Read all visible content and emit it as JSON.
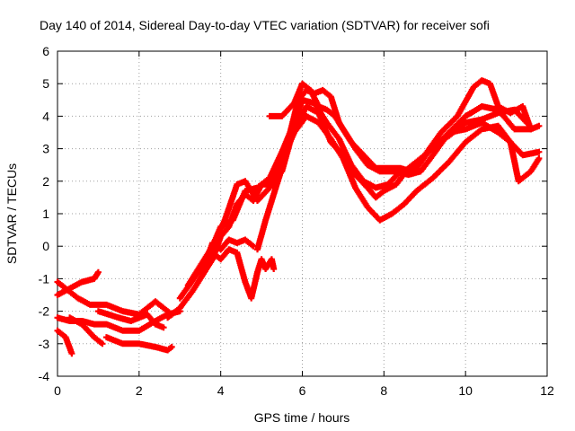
{
  "chart_data": {
    "type": "scatter",
    "title": "Day 140 of 2014, Sidereal Day-to-day VTEC variation (SDTVAR) for receiver sofi",
    "xlabel": "GPS time / hours",
    "ylabel": "SDTVAR / TECUs",
    "xlim": [
      0,
      12
    ],
    "ylim": [
      -4,
      6
    ],
    "xticks": [
      0,
      2,
      4,
      6,
      8,
      10,
      12
    ],
    "yticks": [
      -4,
      -3,
      -2,
      -1,
      0,
      1,
      2,
      3,
      4,
      5,
      6
    ],
    "xtick_labels": [
      "0",
      "2",
      "4",
      "6",
      "8",
      "10",
      "12"
    ],
    "ytick_labels": [
      "-4",
      "-3",
      "-2",
      "-1",
      "0",
      "1",
      "2",
      "3",
      "4",
      "5",
      "6"
    ],
    "grid": true,
    "marker": "+",
    "series_color": "#ff0000",
    "series": [
      {
        "name": "s1",
        "points": [
          [
            0,
            -1.1
          ],
          [
            0.3,
            -1.4
          ],
          [
            0.5,
            -1.6
          ],
          [
            0.8,
            -1.8
          ],
          [
            1.2,
            -1.8
          ],
          [
            1.6,
            -2.0
          ],
          [
            2.0,
            -2.1
          ],
          [
            2.2,
            -1.9
          ],
          [
            2.4,
            -1.7
          ],
          [
            2.6,
            -1.9
          ],
          [
            2.8,
            -2.1
          ]
        ]
      },
      {
        "name": "s2",
        "points": [
          [
            0,
            -1.5
          ],
          [
            0.3,
            -1.3
          ],
          [
            0.6,
            -1.1
          ],
          [
            0.9,
            -1.0
          ],
          [
            1.0,
            -0.8
          ]
        ]
      },
      {
        "name": "s3",
        "points": [
          [
            0,
            -2.2
          ],
          [
            0.3,
            -2.3
          ],
          [
            0.6,
            -2.3
          ],
          [
            0.9,
            -2.4
          ],
          [
            1.2,
            -2.4
          ],
          [
            1.6,
            -2.6
          ],
          [
            2.0,
            -2.6
          ],
          [
            2.4,
            -2.3
          ],
          [
            2.7,
            -2.1
          ],
          [
            3.0,
            -2.0
          ]
        ]
      },
      {
        "name": "s4",
        "points": [
          [
            0,
            -2.6
          ],
          [
            0.2,
            -2.8
          ],
          [
            0.35,
            -3.3
          ]
        ]
      },
      {
        "name": "s5",
        "points": [
          [
            0.3,
            -2.2
          ],
          [
            0.6,
            -2.4
          ],
          [
            0.9,
            -2.8
          ],
          [
            1.1,
            -3.0
          ]
        ]
      },
      {
        "name": "s6",
        "points": [
          [
            1.0,
            -2.0
          ],
          [
            1.5,
            -2.2
          ],
          [
            1.8,
            -2.3
          ],
          [
            2.0,
            -2.2
          ],
          [
            2.2,
            -2.1
          ],
          [
            2.4,
            -2.4
          ],
          [
            2.6,
            -2.5
          ]
        ]
      },
      {
        "name": "s7",
        "points": [
          [
            1.2,
            -2.8
          ],
          [
            1.6,
            -3.0
          ],
          [
            2.0,
            -3.0
          ],
          [
            2.4,
            -3.1
          ],
          [
            2.7,
            -3.2
          ],
          [
            2.8,
            -3.1
          ]
        ]
      },
      {
        "name": "s8",
        "points": [
          [
            2.7,
            -2.2
          ],
          [
            3.0,
            -1.9
          ],
          [
            3.3,
            -1.4
          ],
          [
            3.6,
            -0.8
          ],
          [
            3.8,
            -0.4
          ],
          [
            4.0,
            0.3
          ],
          [
            4.2,
            0.6
          ],
          [
            4.4,
            1.3
          ],
          [
            4.6,
            1.6
          ],
          [
            4.8,
            1.4
          ],
          [
            5.0,
            1.9
          ],
          [
            5.2,
            1.9
          ],
          [
            5.5,
            2.3
          ],
          [
            5.7,
            3.2
          ],
          [
            5.9,
            3.8
          ],
          [
            6.1,
            4.3
          ],
          [
            6.4,
            4.1
          ],
          [
            6.7,
            3.2
          ],
          [
            7.0,
            2.8
          ],
          [
            7.3,
            2.2
          ],
          [
            7.6,
            1.8
          ],
          [
            7.8,
            1.5
          ],
          [
            8.0,
            1.7
          ],
          [
            8.3,
            1.9
          ],
          [
            8.6,
            2.4
          ],
          [
            8.9,
            2.7
          ],
          [
            9.2,
            3.0
          ],
          [
            9.6,
            3.5
          ],
          [
            10.0,
            3.6
          ],
          [
            10.4,
            3.8
          ],
          [
            10.8,
            3.5
          ],
          [
            11.1,
            3.2
          ],
          [
            11.4,
            2.8
          ],
          [
            11.8,
            2.9
          ]
        ]
      },
      {
        "name": "s9",
        "points": [
          [
            3.0,
            -1.6
          ],
          [
            3.4,
            -0.9
          ],
          [
            3.7,
            -0.3
          ],
          [
            4.0,
            0.6
          ],
          [
            4.3,
            0.8
          ],
          [
            4.6,
            1.7
          ],
          [
            4.9,
            1.8
          ],
          [
            5.2,
            2.1
          ],
          [
            5.5,
            2.9
          ],
          [
            5.8,
            3.8
          ],
          [
            6.0,
            4.5
          ],
          [
            6.3,
            4.4
          ],
          [
            6.6,
            3.8
          ],
          [
            6.9,
            3.3
          ],
          [
            7.2,
            2.5
          ],
          [
            7.5,
            2.0
          ],
          [
            7.8,
            1.8
          ],
          [
            8.1,
            1.9
          ],
          [
            8.4,
            2.3
          ],
          [
            8.8,
            2.4
          ],
          [
            9.2,
            3.1
          ],
          [
            9.6,
            3.4
          ],
          [
            10.0,
            3.8
          ],
          [
            10.4,
            3.9
          ],
          [
            10.8,
            4.1
          ],
          [
            11.2,
            4.2
          ],
          [
            11.5,
            3.8
          ]
        ]
      },
      {
        "name": "s10",
        "points": [
          [
            3.2,
            -1.2
          ],
          [
            3.5,
            -0.6
          ],
          [
            3.8,
            0.0
          ],
          [
            4.1,
            0.8
          ],
          [
            4.4,
            1.9
          ],
          [
            4.6,
            2.0
          ],
          [
            4.9,
            1.4
          ],
          [
            5.2,
            1.8
          ],
          [
            5.5,
            2.7
          ],
          [
            5.8,
            3.5
          ],
          [
            6.1,
            4.0
          ],
          [
            6.4,
            3.8
          ],
          [
            6.7,
            3.3
          ],
          [
            7.0,
            2.7
          ],
          [
            7.3,
            1.8
          ],
          [
            7.6,
            1.2
          ],
          [
            7.9,
            0.8
          ],
          [
            8.2,
            1.0
          ],
          [
            8.5,
            1.3
          ],
          [
            8.8,
            1.7
          ],
          [
            9.2,
            2.1
          ],
          [
            9.6,
            2.6
          ],
          [
            10.0,
            3.2
          ],
          [
            10.4,
            3.6
          ],
          [
            10.8,
            3.7
          ],
          [
            11.1,
            3.2
          ],
          [
            11.3,
            2.0
          ],
          [
            11.6,
            2.3
          ],
          [
            11.8,
            2.7
          ]
        ]
      },
      {
        "name": "s11",
        "points": [
          [
            3.8,
            -0.2
          ],
          [
            4.0,
            -0.4
          ],
          [
            4.2,
            -0.1
          ],
          [
            4.4,
            -0.2
          ],
          [
            4.6,
            -1.1
          ],
          [
            4.75,
            -1.6
          ],
          [
            4.9,
            -0.8
          ],
          [
            5.0,
            -0.4
          ],
          [
            5.1,
            -0.7
          ],
          [
            5.25,
            -0.4
          ],
          [
            5.3,
            -0.7
          ]
        ]
      },
      {
        "name": "s12",
        "points": [
          [
            3.6,
            -0.6
          ],
          [
            3.8,
            0.1
          ],
          [
            4.0,
            -0.1
          ],
          [
            4.2,
            0.2
          ],
          [
            4.4,
            0.1
          ],
          [
            4.6,
            0.2
          ],
          [
            4.8,
            0.0
          ]
        ]
      },
      {
        "name": "s13",
        "points": [
          [
            4.9,
            -0.1
          ],
          [
            5.1,
            0.8
          ],
          [
            5.3,
            1.6
          ],
          [
            5.5,
            2.4
          ],
          [
            5.7,
            3.5
          ],
          [
            5.9,
            4.5
          ],
          [
            6.1,
            4.8
          ],
          [
            6.3,
            4.7
          ],
          [
            6.5,
            4.8
          ],
          [
            6.7,
            4.6
          ],
          [
            6.9,
            3.8
          ],
          [
            7.2,
            3.2
          ],
          [
            7.5,
            2.8
          ],
          [
            7.8,
            2.4
          ],
          [
            8.1,
            2.4
          ],
          [
            8.4,
            2.4
          ],
          [
            8.7,
            2.3
          ],
          [
            9.0,
            2.8
          ],
          [
            9.4,
            3.5
          ],
          [
            9.8,
            4.0
          ],
          [
            10.2,
            4.9
          ],
          [
            10.4,
            5.1
          ],
          [
            10.6,
            5.0
          ],
          [
            10.8,
            4.3
          ],
          [
            11.1,
            4.1
          ],
          [
            11.4,
            4.3
          ],
          [
            11.6,
            3.6
          ],
          [
            11.8,
            3.7
          ]
        ]
      },
      {
        "name": "s14",
        "points": [
          [
            5.2,
            4.0
          ],
          [
            5.5,
            4.0
          ],
          [
            5.8,
            4.4
          ],
          [
            6.0,
            5.0
          ],
          [
            6.2,
            4.8
          ],
          [
            6.4,
            4.3
          ],
          [
            6.6,
            4.2
          ],
          [
            6.8,
            4.0
          ],
          [
            7.0,
            3.6
          ],
          [
            7.3,
            3.0
          ],
          [
            7.6,
            2.5
          ],
          [
            7.9,
            2.3
          ],
          [
            8.3,
            2.3
          ],
          [
            8.6,
            2.2
          ],
          [
            8.9,
            2.3
          ],
          [
            9.2,
            2.8
          ],
          [
            9.6,
            3.5
          ],
          [
            10.0,
            4.0
          ],
          [
            10.4,
            4.3
          ],
          [
            10.8,
            4.2
          ],
          [
            11.2,
            3.6
          ],
          [
            11.6,
            3.6
          ]
        ]
      }
    ]
  }
}
